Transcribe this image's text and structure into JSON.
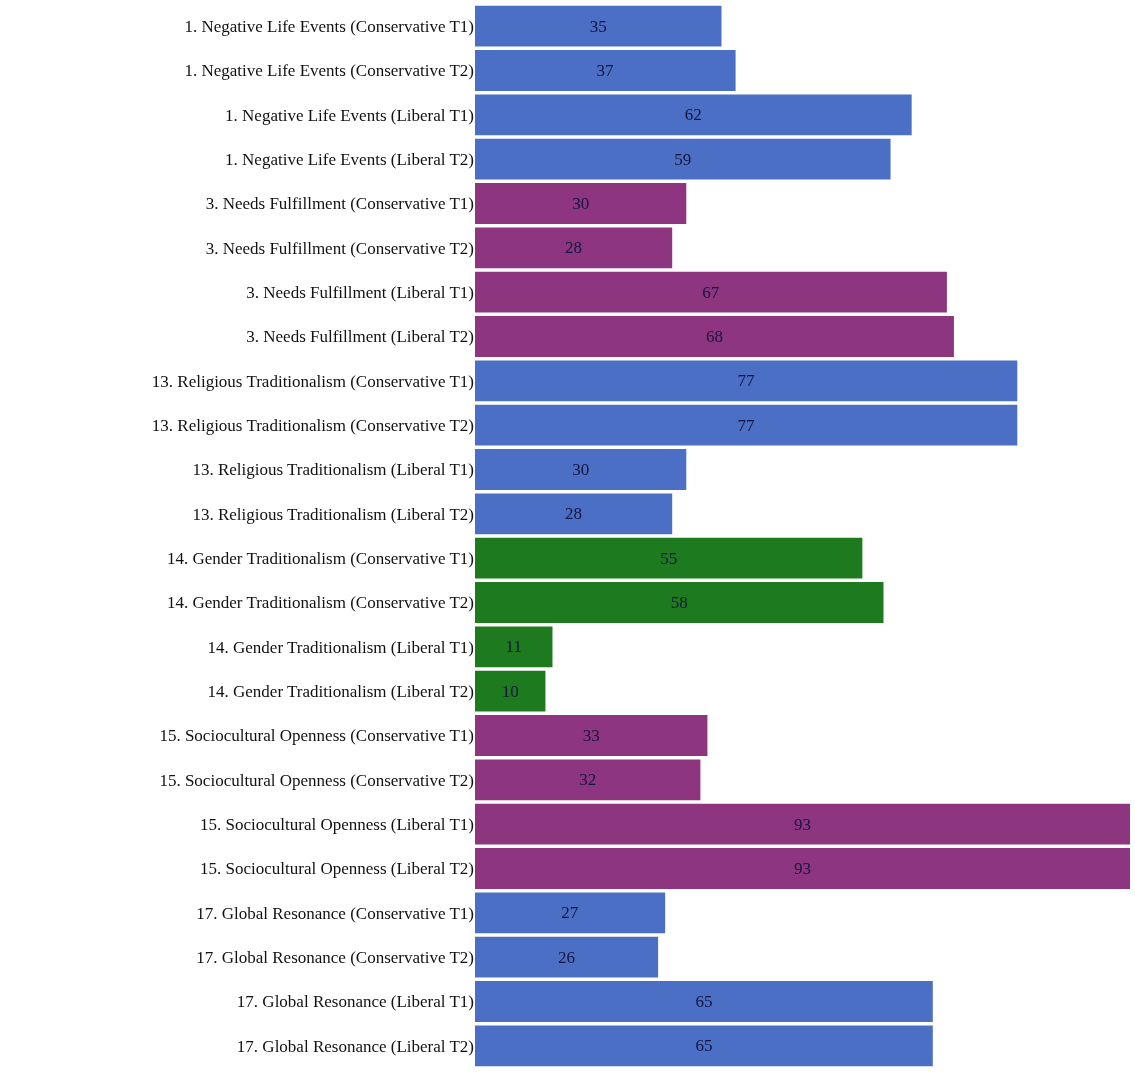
{
  "chart_data": {
    "type": "bar",
    "orientation": "horizontal",
    "data_labels": true,
    "categories": [
      "1. Negative Life Events (Conservative T1)",
      "1. Negative Life Events (Conservative T2)",
      "1. Negative Life Events (Liberal T1)",
      "1. Negative Life Events (Liberal T2)",
      "3. Needs Fulfillment (Conservative T1)",
      "3. Needs Fulfillment (Conservative T2)",
      "3. Needs Fulfillment (Liberal T1)",
      "3. Needs Fulfillment (Liberal T2)",
      "13. Religious Traditionalism (Conservative T1)",
      "13. Religious Traditionalism (Conservative T2)",
      "13. Religious Traditionalism (Liberal T1)",
      "13. Religious Traditionalism (Liberal T2)",
      "14. Gender Traditionalism (Conservative T1)",
      "14. Gender Traditionalism (Conservative T2)",
      "14. Gender Traditionalism (Liberal T1)",
      "14. Gender Traditionalism (Liberal T2)",
      "15. Sociocultural Openness (Conservative T1)",
      "15. Sociocultural Openness (Conservative T2)",
      "15. Sociocultural Openness (Liberal T1)",
      "15. Sociocultural Openness (Liberal T2)",
      "17. Global Resonance (Conservative T1)",
      "17. Global Resonance (Conservative T2)",
      "17. Global Resonance (Liberal T1)",
      "17. Global Resonance (Liberal T2)"
    ],
    "values": [
      35,
      37,
      62,
      59,
      30,
      28,
      67,
      68,
      77,
      77,
      30,
      28,
      55,
      58,
      11,
      10,
      33,
      32,
      93,
      93,
      27,
      26,
      65,
      65
    ],
    "colors": [
      "#4a6fc4",
      "#4a6fc4",
      "#4a6fc4",
      "#4a6fc4",
      "#8e3580",
      "#8e3580",
      "#8e3580",
      "#8e3580",
      "#4a6fc4",
      "#4a6fc4",
      "#4a6fc4",
      "#4a6fc4",
      "#1e7a1e",
      "#1e7a1e",
      "#1e7a1e",
      "#1e7a1e",
      "#8e3580",
      "#8e3580",
      "#8e3580",
      "#8e3580",
      "#4a6fc4",
      "#4a6fc4",
      "#4a6fc4",
      "#4a6fc4"
    ]
  }
}
